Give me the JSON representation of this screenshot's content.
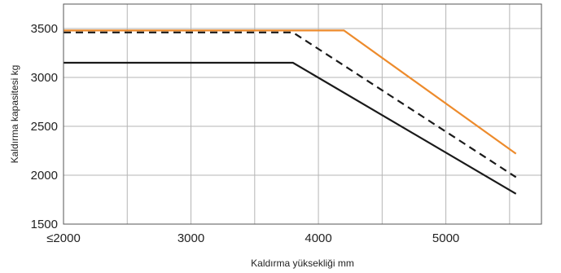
{
  "chart_data": {
    "type": "line",
    "title": "",
    "xlabel": "Kaldırma yüksekliği mm",
    "ylabel": "Kaldırma kapasitesi kg",
    "xlim": [
      2000,
      5750
    ],
    "ylim": [
      1500,
      3750
    ],
    "grid": true,
    "legend": "none",
    "x_ticks": [
      {
        "value": 2000,
        "label": "≤2000"
      },
      {
        "value": 3000,
        "label": "3000"
      },
      {
        "value": 4000,
        "label": "4000"
      },
      {
        "value": 5000,
        "label": "5000"
      }
    ],
    "y_ticks": [
      {
        "value": 1500,
        "label": "1500"
      },
      {
        "value": 2000,
        "label": "2000"
      },
      {
        "value": 2500,
        "label": "2500"
      },
      {
        "value": 3000,
        "label": "3000"
      },
      {
        "value": 3500,
        "label": "3500"
      }
    ],
    "x_grid": [
      2000,
      2500,
      3000,
      3500,
      4000,
      4500,
      5000,
      5500
    ],
    "series": [
      {
        "color": "#ed8b2c",
        "dash": "solid",
        "points": [
          [
            2000,
            3480
          ],
          [
            4200,
            3480
          ],
          [
            5550,
            2220
          ]
        ]
      },
      {
        "color": "#1a1a1a",
        "dash": "dashed",
        "points": [
          [
            2000,
            3460
          ],
          [
            3800,
            3460
          ],
          [
            5550,
            1980
          ]
        ]
      },
      {
        "color": "#1a1a1a",
        "dash": "solid",
        "points": [
          [
            2000,
            3150
          ],
          [
            3800,
            3150
          ],
          [
            5550,
            1810
          ]
        ]
      }
    ]
  }
}
